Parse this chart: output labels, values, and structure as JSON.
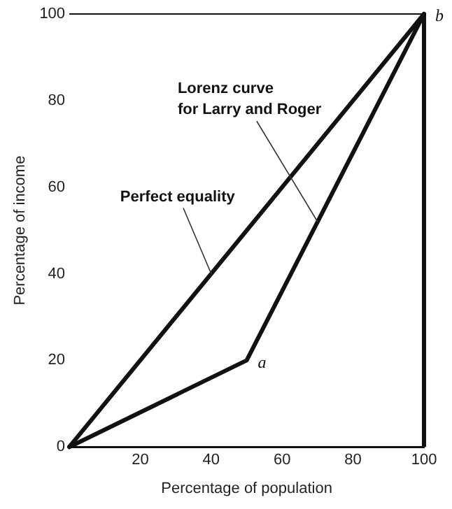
{
  "chart_data": {
    "type": "line",
    "xlabel": "Percentage of population",
    "ylabel": "Percentage of income",
    "x": [
      0,
      100
    ],
    "series": [
      {
        "color": "#111111",
        "values": [
          0,
          100
        ]
      },
      {
        "color": "#111111",
        "x": [
          0,
          50,
          100
        ],
        "values": [
          0,
          20,
          100
        ]
      }
    ],
    "xlim": [
      0,
      100
    ],
    "ylim": [
      0,
      100
    ],
    "xticks": [
      20,
      40,
      60,
      80,
      100
    ],
    "yticks": [
      0,
      20,
      40,
      60,
      80,
      100
    ],
    "grid": false,
    "legend": false,
    "marker": "none",
    "line_style": "solid",
    "annotations": [
      {
        "text": "Lorenz curve\nfor Larry and Roger",
        "x": 70,
        "y": 52
      },
      {
        "text": "Perfect equality",
        "x": 40,
        "y": 40
      },
      {
        "text": "a",
        "x": 50,
        "y": 20
      },
      {
        "text": "b",
        "x": 100,
        "y": 100
      }
    ]
  }
}
